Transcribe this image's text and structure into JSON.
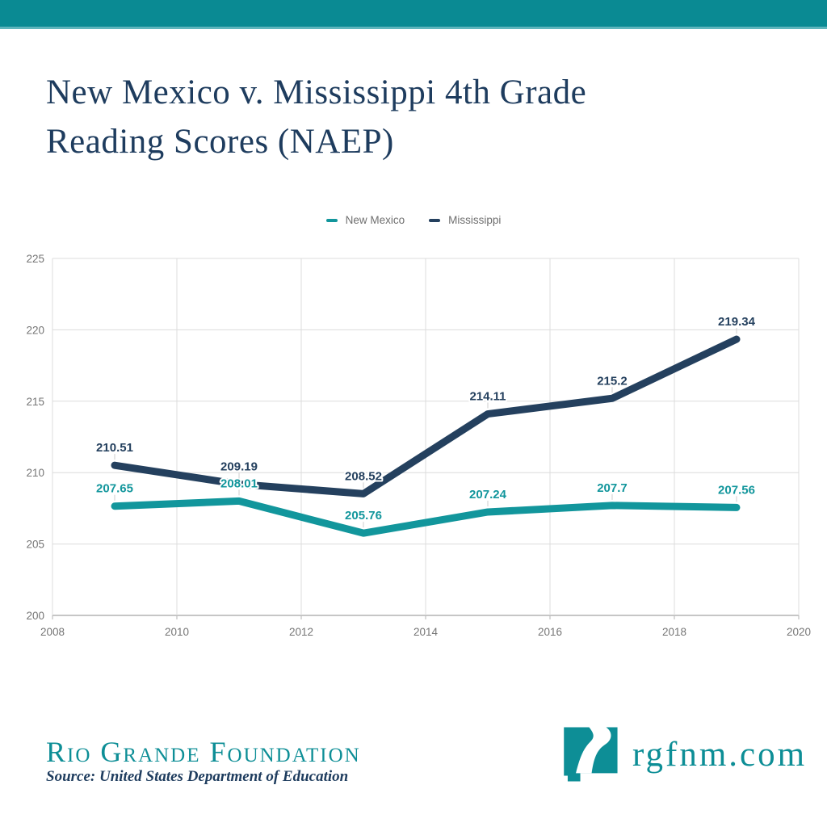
{
  "header": {
    "title_line1": "New Mexico v. Mississippi 4th Grade",
    "title_line2": "Reading Scores (NAEP)"
  },
  "chart_data": {
    "type": "line",
    "title": "New Mexico v. Mississippi 4th Grade Reading Scores (NAEP)",
    "x": [
      2009,
      2011,
      2013,
      2015,
      2017,
      2019
    ],
    "series": [
      {
        "name": "New Mexico",
        "color": "#12969C",
        "values": [
          207.65,
          208.01,
          205.76,
          207.24,
          207.7,
          207.56
        ]
      },
      {
        "name": "Mississippi",
        "color": "#24405E",
        "values": [
          210.51,
          209.19,
          208.52,
          214.11,
          215.2,
          219.34
        ]
      }
    ],
    "xlim": [
      2008,
      2020
    ],
    "ylim": [
      200,
      225
    ],
    "x_ticks": [
      2008,
      2010,
      2012,
      2014,
      2016,
      2018,
      2020
    ],
    "y_ticks": [
      200,
      205,
      210,
      215,
      220,
      225
    ],
    "grid": true,
    "legend_position": "top-center",
    "data_labels": true
  },
  "footer": {
    "org_name": "Rio Grande Foundation",
    "source": "Source: United States Department of Education",
    "website": "rgfnm.com"
  },
  "icons": {
    "logo": "new-mexico-state-with-river-icon"
  },
  "colors": {
    "top_bar": "#0A8A93",
    "title_text": "#1E3C5E",
    "axis_text": "#757575",
    "gridline": "#DCDCDC",
    "axis_line": "#B3B3B3",
    "leader_tick": "#CCCCCC",
    "brand_teal": "#0D8E96",
    "legend_text": "#6F6F6F"
  }
}
